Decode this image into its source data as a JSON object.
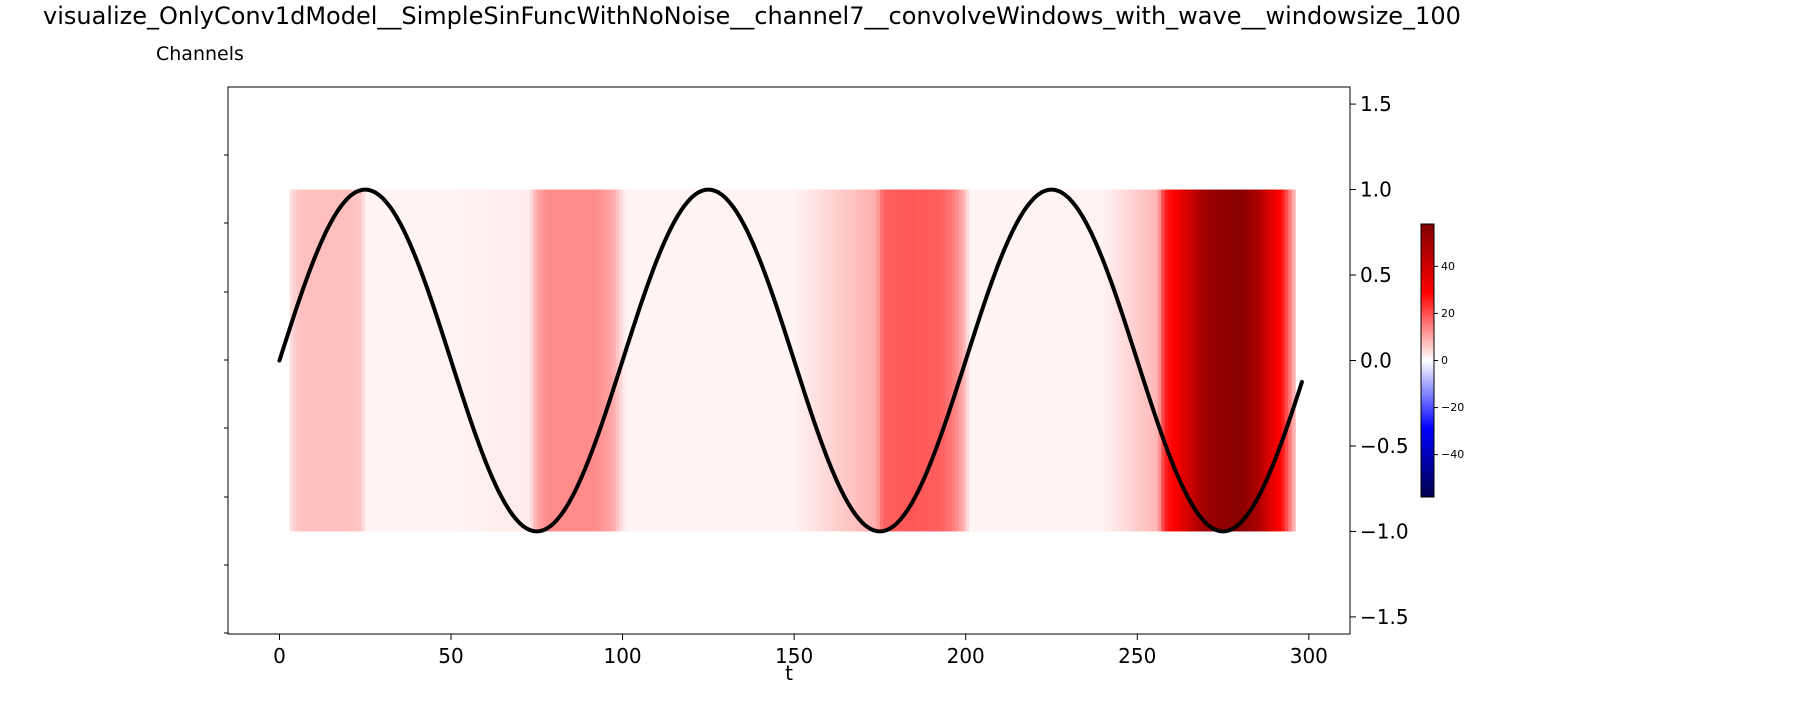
{
  "figure": {
    "title": "visualize_OnlyConv1dModel__SimpleSinFuncWithNoNoise__channel7__convolveWindows_with_wave__windowsize_100",
    "subplot_label": "Channels"
  },
  "chart_data": {
    "type": "heatmap",
    "title": "visualize_OnlyConv1dModel__SimpleSinFuncWithNoNoise__channel7__convolveWindows_with_wave__windowsize_100",
    "xlabel": "t",
    "ylabel": "",
    "xlim": [
      -15,
      312
    ],
    "ylim": [
      -1.6,
      1.6
    ],
    "x_ticks": [
      0,
      50,
      100,
      150,
      200,
      250,
      300
    ],
    "y_ticks": [
      1.5,
      1.0,
      0.5,
      0.0,
      -0.5,
      -1.0,
      -1.5
    ],
    "y_tick_labels": [
      "1.5",
      "1.0",
      "0.5",
      "0.0",
      "−0.5",
      "−1.0",
      "−1.5"
    ],
    "heatmap_band": {
      "y_from": -1.0,
      "y_to": 1.0,
      "t_from": 3,
      "t_to": 296
    },
    "heatmap_columns": [
      {
        "t": 3,
        "v": 3
      },
      {
        "t": 5,
        "v": 6
      },
      {
        "t": 7,
        "v": 7
      },
      {
        "t": 10,
        "v": 7
      },
      {
        "t": 15,
        "v": 7
      },
      {
        "t": 20,
        "v": 7
      },
      {
        "t": 24,
        "v": 6
      },
      {
        "t": 25,
        "v": 1
      },
      {
        "t": 50,
        "v": 1
      },
      {
        "t": 73,
        "v": 2
      },
      {
        "t": 75,
        "v": 10
      },
      {
        "t": 78,
        "v": 13
      },
      {
        "t": 85,
        "v": 13
      },
      {
        "t": 92,
        "v": 13
      },
      {
        "t": 97,
        "v": 10
      },
      {
        "t": 100,
        "v": 3
      },
      {
        "t": 101,
        "v": 1
      },
      {
        "t": 150,
        "v": 1
      },
      {
        "t": 156,
        "v": 3
      },
      {
        "t": 165,
        "v": 6
      },
      {
        "t": 174,
        "v": 9
      },
      {
        "t": 176,
        "v": 18
      },
      {
        "t": 185,
        "v": 19
      },
      {
        "t": 193,
        "v": 18
      },
      {
        "t": 197,
        "v": 14
      },
      {
        "t": 200,
        "v": 7
      },
      {
        "t": 201,
        "v": 1
      },
      {
        "t": 240,
        "v": 1
      },
      {
        "t": 256,
        "v": 8
      },
      {
        "t": 258,
        "v": 25
      },
      {
        "t": 262,
        "v": 32
      },
      {
        "t": 266,
        "v": 42
      },
      {
        "t": 270,
        "v": 52
      },
      {
        "t": 280,
        "v": 56
      },
      {
        "t": 285,
        "v": 48
      },
      {
        "t": 289,
        "v": 36
      },
      {
        "t": 292,
        "v": 28
      },
      {
        "t": 294,
        "v": 18
      },
      {
        "t": 296,
        "v": 6
      }
    ],
    "series": [
      {
        "name": "",
        "function": "sin(2*pi*t/100)",
        "t_start": 0,
        "t_end": 298,
        "step": 1,
        "color": "#000000"
      }
    ],
    "colorbar": {
      "cmap": "seismic",
      "vmin": -58,
      "vmax": 58,
      "ticks": [
        40,
        20,
        0,
        -20,
        -40
      ],
      "tick_labels": [
        "40",
        "20",
        "0",
        "−20",
        "−40"
      ]
    },
    "grid": false,
    "legend": "none"
  }
}
